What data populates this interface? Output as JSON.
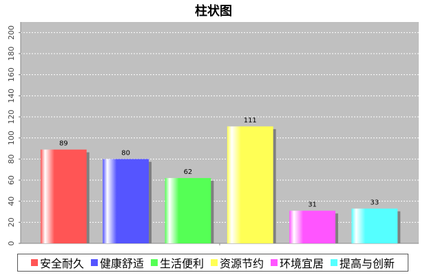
{
  "chart_data": {
    "type": "bar",
    "title": "柱状图",
    "categories": [
      "安全耐久",
      "健康舒适",
      "生活便利",
      "资源节约",
      "环境宜居",
      "提高与创新"
    ],
    "values": [
      89,
      80,
      62,
      111,
      31,
      33
    ],
    "colors": [
      "#ff5555",
      "#5555ff",
      "#55ff55",
      "#ffff55",
      "#ff55ff",
      "#55ffff"
    ],
    "ylim": [
      0,
      210
    ],
    "yticks": [
      0,
      20,
      40,
      60,
      80,
      100,
      120,
      140,
      160,
      180,
      200
    ],
    "grid": true,
    "plot_background": "#c0c0c0",
    "legend_position": "bottom"
  }
}
